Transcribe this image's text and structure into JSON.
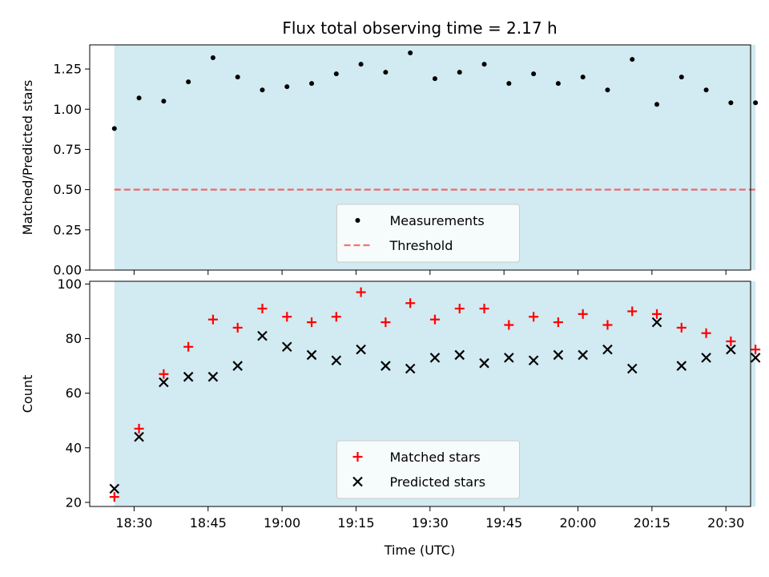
{
  "chart_data": {
    "title": "Flux total observing time = 2.17 h",
    "xlabel": "Time (UTC)",
    "x_ticks": [
      "18:30",
      "18:45",
      "19:00",
      "19:15",
      "19:30",
      "19:45",
      "20:00",
      "20:15",
      "20:30"
    ],
    "x_range_min": [
      1101,
      1235
    ],
    "observing_window_min": [
      1106,
      1236
    ],
    "colors": {
      "window": "#add8e6",
      "measurement": "#000000",
      "threshold": "#ff0000",
      "matched": "#ff0000",
      "predicted": "#000000"
    },
    "panels": [
      {
        "type": "scatter",
        "ylabel": "Matched/Predicted stars",
        "ylim": [
          0,
          1.4
        ],
        "y_ticks": [
          "0.00",
          "0.25",
          "0.50",
          "0.75",
          "1.00",
          "1.25"
        ],
        "threshold": 0.5,
        "legend": {
          "placement": "lower-center",
          "entries": [
            "Measurements",
            "Threshold"
          ]
        },
        "series": [
          {
            "name": "Measurements",
            "x": [
              "18:26",
              "18:31",
              "18:36",
              "18:41",
              "18:46",
              "18:51",
              "18:56",
              "19:01",
              "19:06",
              "19:11",
              "19:16",
              "19:21",
              "19:26",
              "19:31",
              "19:36",
              "19:41",
              "19:46",
              "19:51",
              "19:56",
              "20:01",
              "20:06",
              "20:11",
              "20:16",
              "20:21",
              "20:26",
              "20:31",
              "20:36"
            ],
            "y": [
              0.88,
              1.07,
              1.05,
              1.17,
              1.32,
              1.2,
              1.12,
              1.14,
              1.16,
              1.22,
              1.28,
              1.23,
              1.35,
              1.19,
              1.23,
              1.28,
              1.16,
              1.22,
              1.16,
              1.2,
              1.12,
              1.31,
              1.03,
              1.2,
              1.12,
              1.04,
              1.04
            ]
          }
        ]
      },
      {
        "type": "scatter",
        "ylabel": "Count",
        "ylim": [
          18.5,
          101
        ],
        "y_ticks": [
          "20",
          "40",
          "60",
          "80",
          "100"
        ],
        "legend": {
          "placement": "lower-center",
          "entries": [
            "Matched stars",
            "Predicted stars"
          ]
        },
        "series": [
          {
            "name": "Matched stars",
            "marker": "plus",
            "x": [
              "18:26",
              "18:31",
              "18:36",
              "18:41",
              "18:46",
              "18:51",
              "18:56",
              "19:01",
              "19:06",
              "19:11",
              "19:16",
              "19:21",
              "19:26",
              "19:31",
              "19:36",
              "19:41",
              "19:46",
              "19:51",
              "19:56",
              "20:01",
              "20:06",
              "20:11",
              "20:16",
              "20:21",
              "20:26",
              "20:31",
              "20:36"
            ],
            "y": [
              22,
              47,
              67,
              77,
              87,
              84,
              91,
              88,
              86,
              88,
              97,
              86,
              93,
              87,
              91,
              91,
              85,
              88,
              86,
              89,
              85,
              90,
              89,
              84,
              82,
              79,
              76
            ]
          },
          {
            "name": "Predicted stars",
            "marker": "x",
            "x": [
              "18:26",
              "18:31",
              "18:36",
              "18:41",
              "18:46",
              "18:51",
              "18:56",
              "19:01",
              "19:06",
              "19:11",
              "19:16",
              "19:21",
              "19:26",
              "19:31",
              "19:36",
              "19:41",
              "19:46",
              "19:51",
              "19:56",
              "20:01",
              "20:06",
              "20:11",
              "20:16",
              "20:21",
              "20:26",
              "20:31",
              "20:36"
            ],
            "y": [
              25,
              44,
              64,
              66,
              66,
              70,
              81,
              77,
              74,
              72,
              76,
              70,
              69,
              73,
              74,
              71,
              73,
              72,
              74,
              74,
              76,
              69,
              86,
              70,
              73,
              76,
              73
            ]
          }
        ]
      }
    ]
  }
}
